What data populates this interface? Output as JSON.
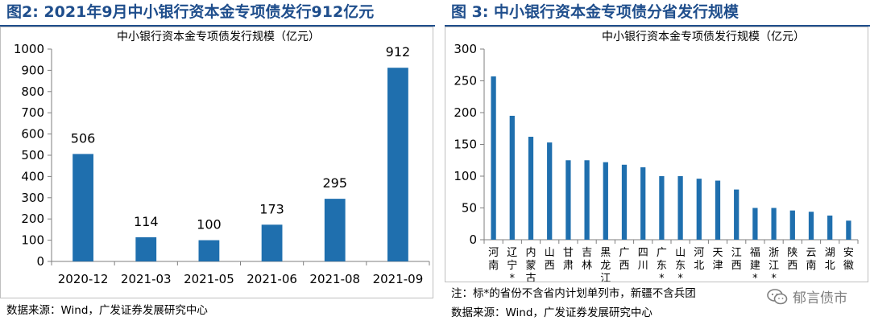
{
  "left": {
    "title": "图2:  2021年9月中小银行资本金专项债发行912亿元",
    "source": "数据来源：Wind，广发证券发展研究中心",
    "chart_data": {
      "type": "bar",
      "title": "中小银行资本金专项债发行规模（亿元）",
      "categories": [
        "2020-12",
        "2021-03",
        "2021-05",
        "2021-06",
        "2021-08",
        "2021-09"
      ],
      "values": [
        506,
        114,
        100,
        173,
        295,
        912
      ],
      "data_labels": [
        "506",
        "114",
        "100",
        "173",
        "295",
        "912"
      ],
      "ylim": [
        0,
        1000
      ],
      "yticks": [
        "0",
        "100",
        "200",
        "300",
        "400",
        "500",
        "600",
        "700",
        "800",
        "900",
        "1000"
      ],
      "bar_color": "#1f6fae",
      "grid": false,
      "legend": "none"
    }
  },
  "right": {
    "title": "图 3:  中小银行资本金专项债分省发行规模",
    "footnote": "注：标*的省份不含省内计划单列市，新疆不含兵团",
    "source": "数据来源：Wind，广发证券发展研究中心",
    "watermark": "郁言债市",
    "watermark_icon": "wechat-icon",
    "chart_data": {
      "type": "bar",
      "title": "中小银行资本金专项债发行规模（亿元）",
      "categories": [
        "河南",
        "辽宁*",
        "内蒙古",
        "山西",
        "甘肃",
        "吉林",
        "黑龙江",
        "广西",
        "四川",
        "广东*",
        "山东*",
        "河北",
        "天津",
        "江西",
        "福建*",
        "浙江*",
        "陕西",
        "云南",
        "湖北",
        "安徽"
      ],
      "values": [
        257,
        195,
        162,
        153,
        125,
        125,
        122,
        118,
        114,
        100,
        100,
        96,
        93,
        79,
        50,
        50,
        46,
        44,
        38,
        30
      ],
      "ylim": [
        0,
        300
      ],
      "yticks": [
        "0",
        "50",
        "100",
        "150",
        "200",
        "250",
        "300"
      ],
      "bar_color": "#1f6fae",
      "grid": false,
      "legend": "none"
    }
  }
}
